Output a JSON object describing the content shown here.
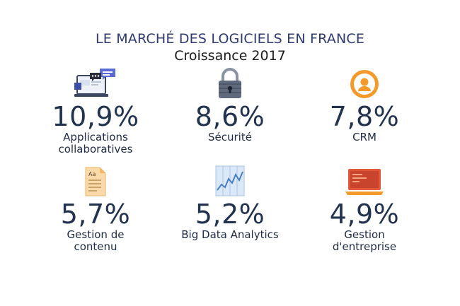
{
  "header": {
    "title": "LE MARCHÉ DES LOGICIELS EN FRANCE",
    "subtitle": "Croissance 2017"
  },
  "items": [
    {
      "value": "10,9%",
      "label": "Applications collaboratives",
      "icon": "collaboration-laptop-icon"
    },
    {
      "value": "8,6%",
      "label": "Sécurité",
      "icon": "padlock-icon"
    },
    {
      "value": "7,8%",
      "label": "CRM",
      "icon": "user-avatar-icon"
    },
    {
      "value": "5,7%",
      "label": "Gestion de contenu",
      "icon": "document-icon"
    },
    {
      "value": "5,2%",
      "label": "Big Data Analytics",
      "icon": "line-graph-icon"
    },
    {
      "value": "4,9%",
      "label": "Gestion d'entreprise",
      "icon": "laptop-icon"
    }
  ],
  "colors": {
    "title": "#2f3a72",
    "value": "#223350",
    "orange": "#f39a2b",
    "blue_icon": "#7da7d9",
    "lock": "#5f6a7d"
  }
}
